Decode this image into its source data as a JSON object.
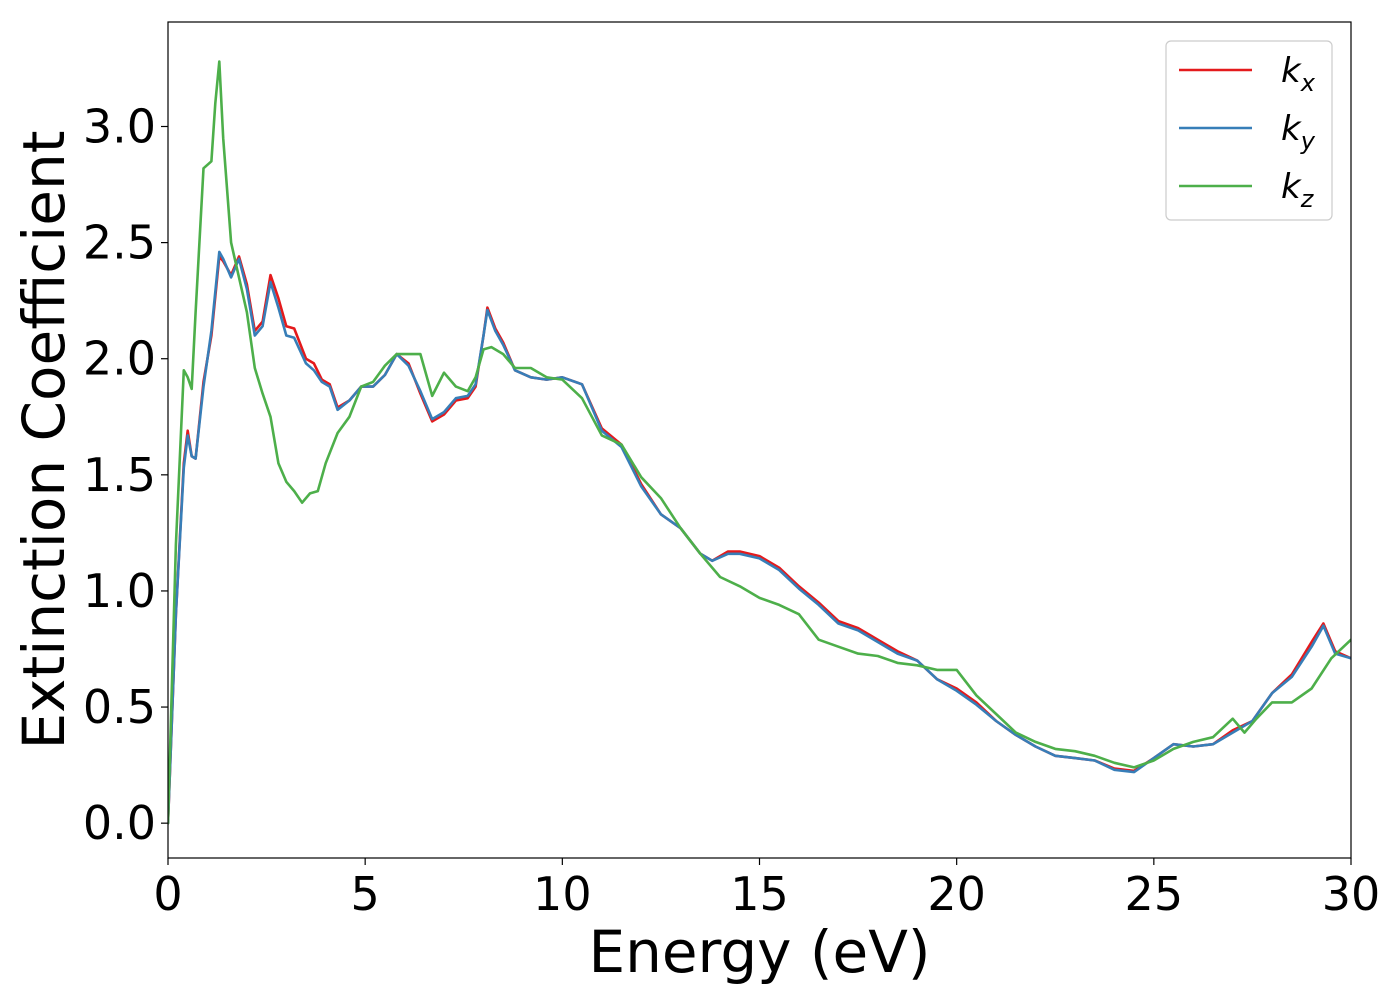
{
  "chart_data": {
    "type": "line",
    "xlabel": "Energy (eV)",
    "ylabel": "Extinction Coefficient",
    "xlim": [
      0,
      30
    ],
    "ylim": [
      -0.15,
      3.45
    ],
    "xticks": [
      0,
      5,
      10,
      15,
      20,
      25,
      30
    ],
    "xtick_labels": [
      "0",
      "5",
      "10",
      "15",
      "20",
      "25",
      "30"
    ],
    "yticks": [
      0.0,
      0.5,
      1.0,
      1.5,
      2.0,
      2.5,
      3.0
    ],
    "ytick_labels": [
      "0.0",
      "0.5",
      "1.0",
      "1.5",
      "2.0",
      "2.5",
      "3.0"
    ],
    "grid": false,
    "legend_position": "top-right",
    "series": [
      {
        "name": "k",
        "sub": "x",
        "color": "#e41a1c",
        "points": [
          [
            0,
            0
          ],
          [
            0.2,
            0.9
          ],
          [
            0.4,
            1.55
          ],
          [
            0.5,
            1.69
          ],
          [
            0.6,
            1.58
          ],
          [
            0.7,
            1.57
          ],
          [
            0.9,
            1.9
          ],
          [
            1.1,
            2.1
          ],
          [
            1.3,
            2.44
          ],
          [
            1.4,
            2.42
          ],
          [
            1.6,
            2.36
          ],
          [
            1.8,
            2.44
          ],
          [
            2.0,
            2.32
          ],
          [
            2.2,
            2.12
          ],
          [
            2.4,
            2.16
          ],
          [
            2.6,
            2.36
          ],
          [
            2.8,
            2.26
          ],
          [
            3.0,
            2.14
          ],
          [
            3.2,
            2.13
          ],
          [
            3.5,
            2.0
          ],
          [
            3.7,
            1.98
          ],
          [
            3.9,
            1.91
          ],
          [
            4.1,
            1.89
          ],
          [
            4.3,
            1.79
          ],
          [
            4.6,
            1.82
          ],
          [
            4.9,
            1.88
          ],
          [
            5.2,
            1.88
          ],
          [
            5.5,
            1.93
          ],
          [
            5.8,
            2.02
          ],
          [
            6.1,
            1.98
          ],
          [
            6.4,
            1.85
          ],
          [
            6.7,
            1.73
          ],
          [
            7.0,
            1.76
          ],
          [
            7.3,
            1.82
          ],
          [
            7.6,
            1.83
          ],
          [
            7.8,
            1.88
          ],
          [
            8.0,
            2.1
          ],
          [
            8.1,
            2.22
          ],
          [
            8.3,
            2.13
          ],
          [
            8.5,
            2.07
          ],
          [
            8.8,
            1.95
          ],
          [
            9.2,
            1.92
          ],
          [
            9.6,
            1.91
          ],
          [
            10.0,
            1.92
          ],
          [
            10.5,
            1.89
          ],
          [
            11.0,
            1.7
          ],
          [
            11.5,
            1.63
          ],
          [
            12.0,
            1.46
          ],
          [
            12.5,
            1.33
          ],
          [
            13.0,
            1.27
          ],
          [
            13.5,
            1.16
          ],
          [
            13.8,
            1.13
          ],
          [
            14.2,
            1.17
          ],
          [
            14.5,
            1.17
          ],
          [
            15.0,
            1.15
          ],
          [
            15.5,
            1.1
          ],
          [
            16.0,
            1.02
          ],
          [
            16.5,
            0.95
          ],
          [
            17.0,
            0.87
          ],
          [
            17.5,
            0.84
          ],
          [
            18.0,
            0.79
          ],
          [
            18.5,
            0.74
          ],
          [
            19.0,
            0.7
          ],
          [
            19.5,
            0.62
          ],
          [
            20.0,
            0.58
          ],
          [
            20.5,
            0.52
          ],
          [
            21.0,
            0.44
          ],
          [
            21.5,
            0.38
          ],
          [
            22.0,
            0.33
          ],
          [
            22.5,
            0.29
          ],
          [
            23.0,
            0.28
          ],
          [
            23.5,
            0.27
          ],
          [
            24.0,
            0.235
          ],
          [
            24.5,
            0.225
          ],
          [
            25.0,
            0.28
          ],
          [
            25.5,
            0.34
          ],
          [
            26.0,
            0.33
          ],
          [
            26.5,
            0.34
          ],
          [
            27.0,
            0.4
          ],
          [
            27.5,
            0.44
          ],
          [
            28.0,
            0.56
          ],
          [
            28.5,
            0.64
          ],
          [
            29.0,
            0.78
          ],
          [
            29.3,
            0.86
          ],
          [
            29.6,
            0.74
          ],
          [
            30.0,
            0.71
          ]
        ]
      },
      {
        "name": "k",
        "sub": "y",
        "color": "#377eb8",
        "points": [
          [
            0,
            0
          ],
          [
            0.2,
            0.9
          ],
          [
            0.4,
            1.53
          ],
          [
            0.5,
            1.67
          ],
          [
            0.6,
            1.58
          ],
          [
            0.7,
            1.57
          ],
          [
            0.9,
            1.88
          ],
          [
            1.1,
            2.12
          ],
          [
            1.3,
            2.46
          ],
          [
            1.4,
            2.43
          ],
          [
            1.6,
            2.35
          ],
          [
            1.8,
            2.43
          ],
          [
            2.0,
            2.3
          ],
          [
            2.2,
            2.1
          ],
          [
            2.4,
            2.14
          ],
          [
            2.6,
            2.33
          ],
          [
            2.8,
            2.22
          ],
          [
            3.0,
            2.1
          ],
          [
            3.2,
            2.09
          ],
          [
            3.5,
            1.98
          ],
          [
            3.7,
            1.95
          ],
          [
            3.9,
            1.9
          ],
          [
            4.1,
            1.88
          ],
          [
            4.3,
            1.78
          ],
          [
            4.6,
            1.82
          ],
          [
            4.9,
            1.88
          ],
          [
            5.2,
            1.88
          ],
          [
            5.5,
            1.93
          ],
          [
            5.8,
            2.02
          ],
          [
            6.1,
            1.97
          ],
          [
            6.4,
            1.86
          ],
          [
            6.7,
            1.74
          ],
          [
            7.0,
            1.77
          ],
          [
            7.3,
            1.83
          ],
          [
            7.6,
            1.84
          ],
          [
            7.8,
            1.89
          ],
          [
            8.0,
            2.1
          ],
          [
            8.1,
            2.21
          ],
          [
            8.3,
            2.12
          ],
          [
            8.5,
            2.06
          ],
          [
            8.8,
            1.95
          ],
          [
            9.2,
            1.92
          ],
          [
            9.6,
            1.91
          ],
          [
            10.0,
            1.92
          ],
          [
            10.5,
            1.89
          ],
          [
            11.0,
            1.69
          ],
          [
            11.5,
            1.62
          ],
          [
            12.0,
            1.45
          ],
          [
            12.5,
            1.33
          ],
          [
            13.0,
            1.27
          ],
          [
            13.5,
            1.16
          ],
          [
            13.8,
            1.13
          ],
          [
            14.2,
            1.16
          ],
          [
            14.5,
            1.16
          ],
          [
            15.0,
            1.14
          ],
          [
            15.5,
            1.09
          ],
          [
            16.0,
            1.01
          ],
          [
            16.5,
            0.94
          ],
          [
            17.0,
            0.86
          ],
          [
            17.5,
            0.83
          ],
          [
            18.0,
            0.78
          ],
          [
            18.5,
            0.73
          ],
          [
            19.0,
            0.7
          ],
          [
            19.5,
            0.62
          ],
          [
            20.0,
            0.57
          ],
          [
            20.5,
            0.51
          ],
          [
            21.0,
            0.44
          ],
          [
            21.5,
            0.38
          ],
          [
            22.0,
            0.33
          ],
          [
            22.5,
            0.29
          ],
          [
            23.0,
            0.28
          ],
          [
            23.5,
            0.27
          ],
          [
            24.0,
            0.23
          ],
          [
            24.5,
            0.22
          ],
          [
            25.0,
            0.28
          ],
          [
            25.5,
            0.34
          ],
          [
            26.0,
            0.33
          ],
          [
            26.5,
            0.34
          ],
          [
            27.0,
            0.39
          ],
          [
            27.5,
            0.44
          ],
          [
            28.0,
            0.56
          ],
          [
            28.5,
            0.63
          ],
          [
            29.0,
            0.76
          ],
          [
            29.3,
            0.85
          ],
          [
            29.6,
            0.73
          ],
          [
            30.0,
            0.71
          ]
        ]
      },
      {
        "name": "k",
        "sub": "z",
        "color": "#4daf4a",
        "points": [
          [
            0,
            0
          ],
          [
            0.2,
            1.2
          ],
          [
            0.4,
            1.95
          ],
          [
            0.5,
            1.92
          ],
          [
            0.6,
            1.87
          ],
          [
            0.7,
            2.2
          ],
          [
            0.9,
            2.82
          ],
          [
            1.1,
            2.85
          ],
          [
            1.2,
            3.1
          ],
          [
            1.3,
            3.28
          ],
          [
            1.4,
            2.95
          ],
          [
            1.6,
            2.5
          ],
          [
            1.8,
            2.35
          ],
          [
            2.0,
            2.2
          ],
          [
            2.2,
            1.96
          ],
          [
            2.4,
            1.85
          ],
          [
            2.6,
            1.75
          ],
          [
            2.8,
            1.55
          ],
          [
            3.0,
            1.47
          ],
          [
            3.2,
            1.43
          ],
          [
            3.4,
            1.38
          ],
          [
            3.6,
            1.42
          ],
          [
            3.8,
            1.43
          ],
          [
            4.0,
            1.55
          ],
          [
            4.3,
            1.68
          ],
          [
            4.6,
            1.75
          ],
          [
            4.9,
            1.88
          ],
          [
            5.2,
            1.9
          ],
          [
            5.5,
            1.97
          ],
          [
            5.8,
            2.02
          ],
          [
            6.1,
            2.02
          ],
          [
            6.4,
            2.02
          ],
          [
            6.7,
            1.84
          ],
          [
            7.0,
            1.94
          ],
          [
            7.3,
            1.88
          ],
          [
            7.6,
            1.86
          ],
          [
            7.8,
            1.92
          ],
          [
            8.0,
            2.04
          ],
          [
            8.2,
            2.05
          ],
          [
            8.5,
            2.02
          ],
          [
            8.8,
            1.96
          ],
          [
            9.2,
            1.96
          ],
          [
            9.6,
            1.92
          ],
          [
            10.0,
            1.91
          ],
          [
            10.5,
            1.83
          ],
          [
            11.0,
            1.67
          ],
          [
            11.5,
            1.63
          ],
          [
            12.0,
            1.49
          ],
          [
            12.5,
            1.4
          ],
          [
            13.0,
            1.27
          ],
          [
            13.5,
            1.16
          ],
          [
            14.0,
            1.06
          ],
          [
            14.5,
            1.02
          ],
          [
            15.0,
            0.97
          ],
          [
            15.5,
            0.94
          ],
          [
            16.0,
            0.9
          ],
          [
            16.5,
            0.79
          ],
          [
            17.0,
            0.76
          ],
          [
            17.5,
            0.73
          ],
          [
            18.0,
            0.72
          ],
          [
            18.5,
            0.69
          ],
          [
            19.0,
            0.68
          ],
          [
            19.5,
            0.66
          ],
          [
            20.0,
            0.66
          ],
          [
            20.5,
            0.55
          ],
          [
            21.0,
            0.47
          ],
          [
            21.5,
            0.39
          ],
          [
            22.0,
            0.35
          ],
          [
            22.5,
            0.32
          ],
          [
            23.0,
            0.31
          ],
          [
            23.5,
            0.29
          ],
          [
            24.0,
            0.26
          ],
          [
            24.5,
            0.24
          ],
          [
            25.0,
            0.27
          ],
          [
            25.5,
            0.32
          ],
          [
            26.0,
            0.35
          ],
          [
            26.5,
            0.37
          ],
          [
            27.0,
            0.45
          ],
          [
            27.3,
            0.39
          ],
          [
            27.6,
            0.45
          ],
          [
            28.0,
            0.52
          ],
          [
            28.5,
            0.52
          ],
          [
            29.0,
            0.58
          ],
          [
            29.5,
            0.71
          ],
          [
            30.0,
            0.79
          ]
        ]
      }
    ]
  }
}
